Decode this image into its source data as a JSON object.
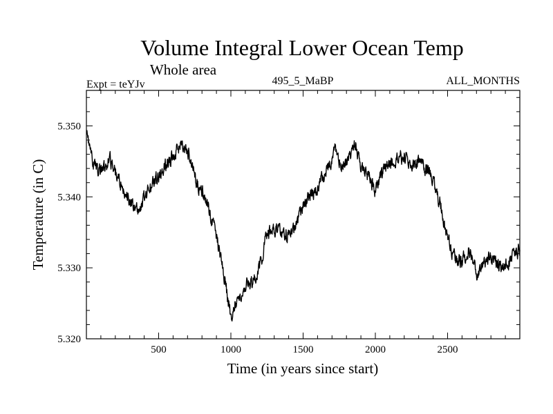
{
  "chart_data": {
    "type": "line",
    "title": "Volume Integral Lower Ocean Temp",
    "subtitle": "Whole area",
    "annotations": {
      "left": "Expt = teYJv",
      "center": "495_5_MaBP",
      "right": "ALL_MONTHS"
    },
    "xlabel": "Time (in years since start)",
    "ylabel": "Temperature (in C)",
    "xlim": [
      0,
      3000
    ],
    "ylim": [
      5.32,
      5.355
    ],
    "x_ticks": [
      500,
      1000,
      1500,
      2000,
      2500
    ],
    "x_tick_labels": [
      "500",
      "1000",
      "1500",
      "2000",
      "2500"
    ],
    "y_ticks": [
      5.32,
      5.33,
      5.34,
      5.35
    ],
    "y_tick_labels": [
      "5.320",
      "5.330",
      "5.340",
      "5.350"
    ],
    "line_color": "#000000",
    "noise_amplitude": 0.0011,
    "series": [
      {
        "name": "Volume integral lower ocean temperature",
        "x": [
          0,
          40,
          80,
          120,
          160,
          200,
          240,
          280,
          320,
          360,
          400,
          450,
          500,
          550,
          600,
          640,
          680,
          720,
          760,
          800,
          840,
          880,
          920,
          960,
          1000,
          1040,
          1080,
          1120,
          1160,
          1200,
          1240,
          1280,
          1320,
          1360,
          1400,
          1450,
          1500,
          1550,
          1600,
          1650,
          1700,
          1720,
          1760,
          1800,
          1840,
          1860,
          1900,
          1950,
          2000,
          2050,
          2100,
          2150,
          2200,
          2250,
          2300,
          2350,
          2400,
          2450,
          2480,
          2520,
          2560,
          2600,
          2650,
          2700,
          2750,
          2800,
          2850,
          2900,
          2950,
          3000
        ],
        "values": [
          5.349,
          5.345,
          5.3435,
          5.344,
          5.3455,
          5.3435,
          5.342,
          5.34,
          5.339,
          5.3375,
          5.34,
          5.342,
          5.343,
          5.3445,
          5.346,
          5.347,
          5.347,
          5.3455,
          5.342,
          5.341,
          5.3385,
          5.336,
          5.3325,
          5.328,
          5.323,
          5.3255,
          5.327,
          5.3275,
          5.328,
          5.33,
          5.334,
          5.335,
          5.3355,
          5.3345,
          5.3345,
          5.336,
          5.3385,
          5.34,
          5.3415,
          5.343,
          5.345,
          5.347,
          5.3445,
          5.345,
          5.3465,
          5.3475,
          5.3445,
          5.343,
          5.341,
          5.3435,
          5.3445,
          5.3455,
          5.3455,
          5.345,
          5.3445,
          5.344,
          5.342,
          5.339,
          5.336,
          5.333,
          5.331,
          5.331,
          5.3325,
          5.329,
          5.3305,
          5.3315,
          5.3305,
          5.33,
          5.332,
          5.3325
        ]
      }
    ]
  }
}
